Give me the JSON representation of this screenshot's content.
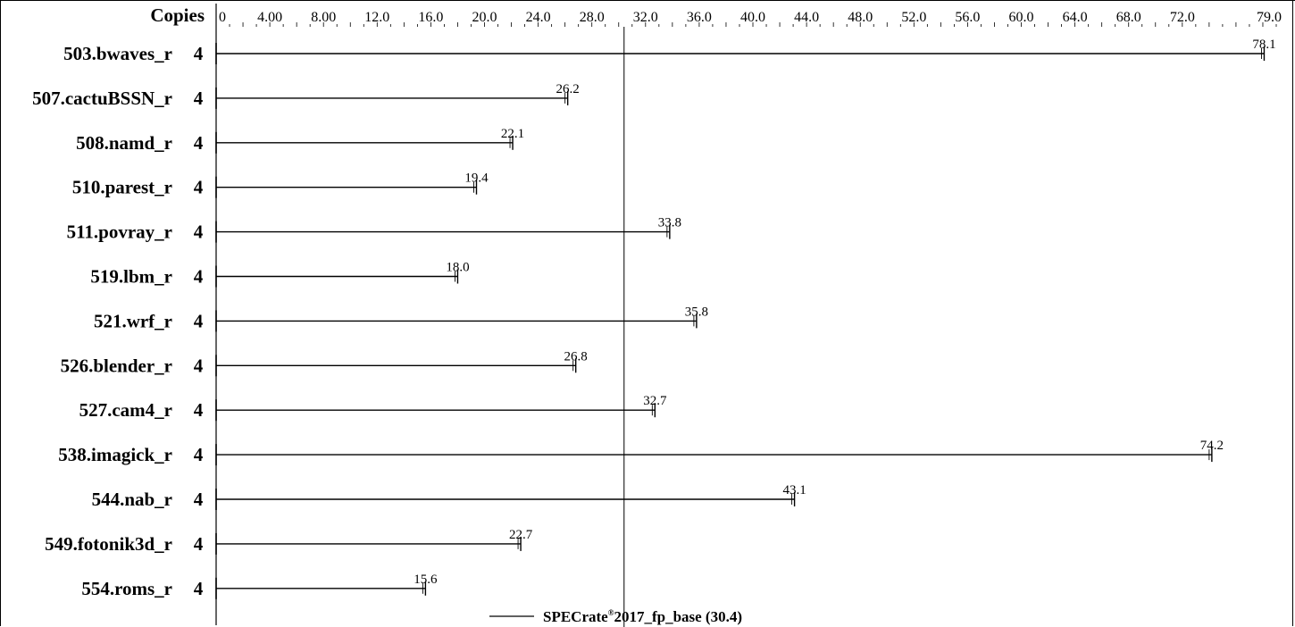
{
  "chart_data": {
    "type": "bar",
    "copies_header": "Copies",
    "x_ticks": [
      "0",
      "4.00",
      "8.00",
      "12.0",
      "16.0",
      "20.0",
      "24.0",
      "28.0",
      "32.0",
      "36.0",
      "40.0",
      "44.0",
      "48.0",
      "52.0",
      "56.0",
      "60.0",
      "64.0",
      "68.0",
      "72.0",
      "79.0"
    ],
    "x_tick_values": [
      0,
      4,
      8,
      12,
      16,
      20,
      24,
      28,
      32,
      36,
      40,
      44,
      48,
      52,
      56,
      60,
      64,
      68,
      72,
      79
    ],
    "xlim": [
      0,
      79
    ],
    "benchmarks": [
      {
        "name": "503.bwaves_r",
        "copies": "4",
        "value": 78.1,
        "label": "78.1"
      },
      {
        "name": "507.cactuBSSN_r",
        "copies": "4",
        "value": 26.2,
        "label": "26.2"
      },
      {
        "name": "508.namd_r",
        "copies": "4",
        "value": 22.1,
        "label": "22.1"
      },
      {
        "name": "510.parest_r",
        "copies": "4",
        "value": 19.4,
        "label": "19.4"
      },
      {
        "name": "511.povray_r",
        "copies": "4",
        "value": 33.8,
        "label": "33.8"
      },
      {
        "name": "519.lbm_r",
        "copies": "4",
        "value": 18.0,
        "label": "18.0"
      },
      {
        "name": "521.wrf_r",
        "copies": "4",
        "value": 35.8,
        "label": "35.8"
      },
      {
        "name": "526.blender_r",
        "copies": "4",
        "value": 26.8,
        "label": "26.8"
      },
      {
        "name": "527.cam4_r",
        "copies": "4",
        "value": 32.7,
        "label": "32.7"
      },
      {
        "name": "538.imagick_r",
        "copies": "4",
        "value": 74.2,
        "label": "74.2"
      },
      {
        "name": "544.nab_r",
        "copies": "4",
        "value": 43.1,
        "label": "43.1"
      },
      {
        "name": "549.fotonik3d_r",
        "copies": "4",
        "value": 22.7,
        "label": "22.7"
      },
      {
        "name": "554.roms_r",
        "copies": "4",
        "value": 15.6,
        "label": "15.6"
      }
    ],
    "reference": {
      "value": 30.4,
      "legend_main": "SPECrate",
      "legend_sup": "®",
      "legend_rest": "2017_fp_base (30.4)"
    },
    "colors": {
      "line": "#000000",
      "background": "#ffffff"
    }
  }
}
